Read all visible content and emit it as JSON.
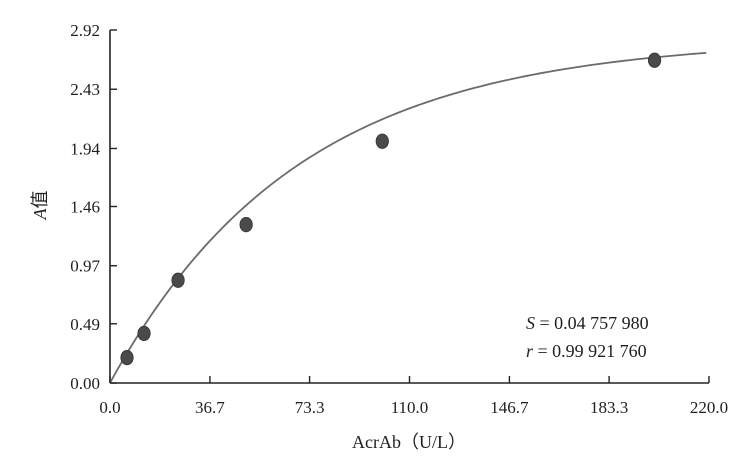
{
  "chart_data": {
    "type": "scatter",
    "xlabel": "AcrAb（U/L）",
    "ylabel_symbol": "A",
    "ylabel_suffix": "值",
    "x_ticks": [
      "0.0",
      "36.7",
      "73.3",
      "110.0",
      "146.7",
      "183.3",
      "220.0"
    ],
    "y_ticks": [
      "0.00",
      "0.49",
      "0.97",
      "1.46",
      "1.94",
      "2.43",
      "2.92"
    ],
    "xlim": [
      0,
      220
    ],
    "ylim": [
      0,
      2.92
    ],
    "points": [
      {
        "x": 6.25,
        "y": 0.21
      },
      {
        "x": 12.5,
        "y": 0.41
      },
      {
        "x": 25,
        "y": 0.85
      },
      {
        "x": 50,
        "y": 1.31
      },
      {
        "x": 100,
        "y": 2.0
      },
      {
        "x": 200,
        "y": 2.67
      }
    ],
    "fit": {
      "type": "exponential-saturation",
      "asymptote": 2.85,
      "rate": 0.0145
    },
    "annotations": {
      "s_symbol": "S",
      "s_value": " = 0.04 757 980",
      "r_symbol": "r",
      "r_value": " = 0.99 921 760"
    },
    "colors": {
      "axis": "#222222",
      "curve": "#6b6b6b",
      "point": "#4a4a4a"
    }
  }
}
